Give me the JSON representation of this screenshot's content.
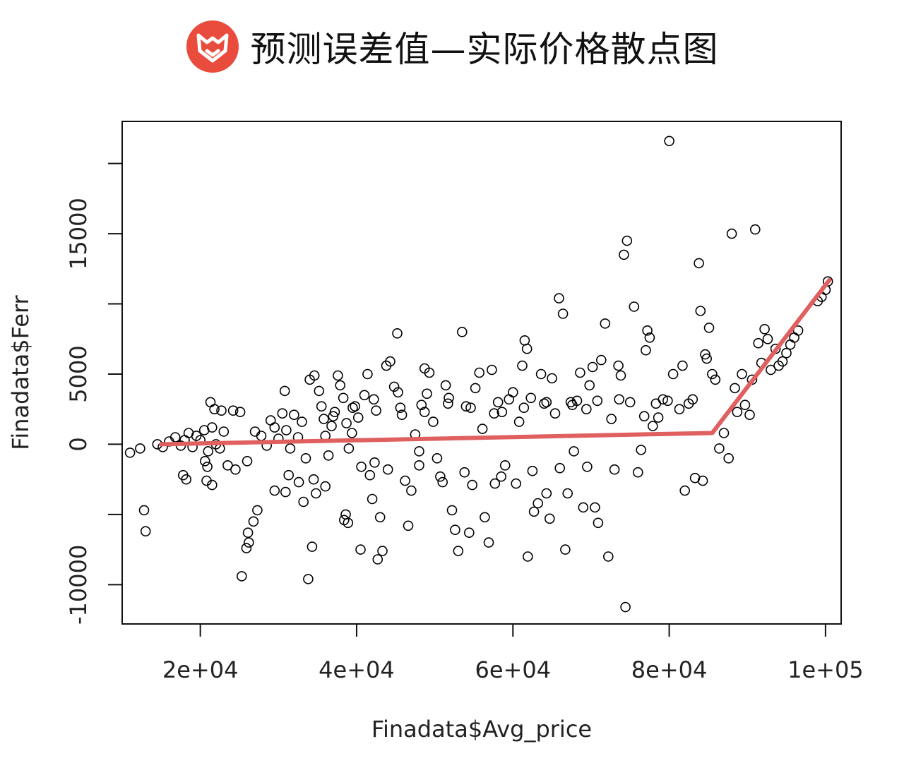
{
  "title": "预测误差值—实际价格散点图",
  "logo": {
    "name": "fox-logo-icon",
    "color": "#E94B3C"
  },
  "chart_data": {
    "type": "scatter",
    "xlabel": "Finadata$Avg_price",
    "ylabel": "Finadata$Ferr",
    "xlim": [
      10000,
      102000
    ],
    "ylim": [
      -12800,
      23000
    ],
    "x_ticks": [
      {
        "value": 20000,
        "label": "2e+04"
      },
      {
        "value": 40000,
        "label": "4e+04"
      },
      {
        "value": 60000,
        "label": "6e+04"
      },
      {
        "value": 80000,
        "label": "8e+04"
      },
      {
        "value": 100000,
        "label": "1e+05"
      }
    ],
    "y_ticks": [
      {
        "value": -10000,
        "label": "-10000"
      },
      {
        "value": -5000,
        "label": ""
      },
      {
        "value": 0,
        "label": "0"
      },
      {
        "value": 5000,
        "label": "5000"
      },
      {
        "value": 10000,
        "label": ""
      },
      {
        "value": 15000,
        "label": "15000"
      },
      {
        "value": 20000,
        "label": ""
      }
    ],
    "marker_color": "#000000",
    "fit_line": {
      "color": "#E06060",
      "x": [
        15000,
        85500,
        100500
      ],
      "y": [
        0,
        800,
        11700
      ]
    },
    "points": [
      [
        11000,
        -600
      ],
      [
        12300,
        -300
      ],
      [
        12800,
        -4700
      ],
      [
        13000,
        -6200
      ],
      [
        14500,
        0
      ],
      [
        15200,
        -200
      ],
      [
        16000,
        200
      ],
      [
        16800,
        500
      ],
      [
        17500,
        -100
      ],
      [
        18000,
        300
      ],
      [
        18500,
        800
      ],
      [
        19000,
        -200
      ],
      [
        19500,
        600
      ],
      [
        20000,
        300
      ],
      [
        20500,
        1000
      ],
      [
        21000,
        -500
      ],
      [
        21500,
        1200
      ],
      [
        22000,
        0
      ],
      [
        22500,
        -300
      ],
      [
        23000,
        900
      ],
      [
        17800,
        -2200
      ],
      [
        18200,
        -2500
      ],
      [
        20800,
        -2600
      ],
      [
        21500,
        -2900
      ],
      [
        21300,
        3000
      ],
      [
        21800,
        2500
      ],
      [
        22700,
        2400
      ],
      [
        24200,
        2400
      ],
      [
        25100,
        2300
      ],
      [
        20600,
        -1200
      ],
      [
        20900,
        -1600
      ],
      [
        23500,
        -1500
      ],
      [
        24500,
        -1800
      ],
      [
        26000,
        -1200
      ],
      [
        25300,
        -9400
      ],
      [
        26100,
        -6300
      ],
      [
        26200,
        -7000
      ],
      [
        26800,
        -5500
      ],
      [
        27300,
        -4700
      ],
      [
        25900,
        -7400
      ],
      [
        27000,
        900
      ],
      [
        27800,
        600
      ],
      [
        28500,
        -100
      ],
      [
        29000,
        1700
      ],
      [
        29500,
        1200
      ],
      [
        30000,
        400
      ],
      [
        30500,
        2200
      ],
      [
        30800,
        3800
      ],
      [
        31000,
        1000
      ],
      [
        31500,
        -300
      ],
      [
        32000,
        2100
      ],
      [
        32500,
        500
      ],
      [
        33000,
        1600
      ],
      [
        33500,
        -1000
      ],
      [
        33800,
        -9600
      ],
      [
        34300,
        -7300
      ],
      [
        34800,
        -3500
      ],
      [
        33200,
        -4100
      ],
      [
        32600,
        -2700
      ],
      [
        31300,
        -2200
      ],
      [
        30900,
        -3400
      ],
      [
        34000,
        4600
      ],
      [
        34600,
        4900
      ],
      [
        35200,
        3800
      ],
      [
        35500,
        2700
      ],
      [
        35800,
        1800
      ],
      [
        36000,
        600
      ],
      [
        36400,
        -800
      ],
      [
        36800,
        1300
      ],
      [
        37200,
        2300
      ],
      [
        37600,
        4900
      ],
      [
        37900,
        4200
      ],
      [
        38300,
        3300
      ],
      [
        38700,
        1500
      ],
      [
        39000,
        -300
      ],
      [
        39400,
        800
      ],
      [
        39800,
        2700
      ],
      [
        40200,
        1900
      ],
      [
        40600,
        -1600
      ],
      [
        41000,
        3500
      ],
      [
        41400,
        5000
      ],
      [
        41700,
        -2200
      ],
      [
        42000,
        -3900
      ],
      [
        42300,
        -1300
      ],
      [
        43000,
        -5200
      ],
      [
        43300,
        -7600
      ],
      [
        42700,
        -8200
      ],
      [
        40500,
        -7500
      ],
      [
        38600,
        -5000
      ],
      [
        38400,
        -5400
      ],
      [
        38900,
        -5600
      ],
      [
        42200,
        3200
      ],
      [
        43800,
        5600
      ],
      [
        44300,
        5900
      ],
      [
        44800,
        4100
      ],
      [
        45300,
        3700
      ],
      [
        45800,
        2100
      ],
      [
        46200,
        -2600
      ],
      [
        46600,
        -5800
      ],
      [
        47000,
        -3300
      ],
      [
        45200,
        7900
      ],
      [
        47500,
        700
      ],
      [
        48000,
        -500
      ],
      [
        48300,
        2800
      ],
      [
        48700,
        5400
      ],
      [
        49000,
        3600
      ],
      [
        49300,
        5100
      ],
      [
        49800,
        1600
      ],
      [
        50300,
        -1000
      ],
      [
        50700,
        -2300
      ],
      [
        51000,
        -2700
      ],
      [
        51400,
        4200
      ],
      [
        51800,
        3300
      ],
      [
        52200,
        -4700
      ],
      [
        52600,
        -6100
      ],
      [
        53000,
        -7600
      ],
      [
        53500,
        8000
      ],
      [
        54000,
        2700
      ],
      [
        54400,
        -6300
      ],
      [
        54800,
        -2900
      ],
      [
        55200,
        4000
      ],
      [
        55700,
        5100
      ],
      [
        56100,
        1100
      ],
      [
        56400,
        -5200
      ],
      [
        56900,
        -7000
      ],
      [
        57300,
        5300
      ],
      [
        57700,
        -2800
      ],
      [
        58100,
        3000
      ],
      [
        58600,
        2300
      ],
      [
        59000,
        -1500
      ],
      [
        59500,
        3200
      ],
      [
        60000,
        3700
      ],
      [
        60400,
        -2800
      ],
      [
        60800,
        1600
      ],
      [
        61200,
        5600
      ],
      [
        61500,
        7400
      ],
      [
        61800,
        6800
      ],
      [
        61900,
        -8000
      ],
      [
        62300,
        3300
      ],
      [
        62700,
        -4800
      ],
      [
        63200,
        -4200
      ],
      [
        63600,
        5000
      ],
      [
        64000,
        2900
      ],
      [
        64300,
        -3500
      ],
      [
        64700,
        -5300
      ],
      [
        65000,
        4700
      ],
      [
        65400,
        2200
      ],
      [
        65900,
        10400
      ],
      [
        66400,
        9300
      ],
      [
        66700,
        -7500
      ],
      [
        67000,
        -3500
      ],
      [
        67400,
        3000
      ],
      [
        67800,
        -500
      ],
      [
        68200,
        3100
      ],
      [
        68600,
        5100
      ],
      [
        69000,
        -4500
      ],
      [
        69400,
        2500
      ],
      [
        69800,
        4200
      ],
      [
        70200,
        5500
      ],
      [
        70500,
        -4500
      ],
      [
        70900,
        -5600
      ],
      [
        71300,
        6000
      ],
      [
        71800,
        8600
      ],
      [
        72200,
        -8000
      ],
      [
        72600,
        1800
      ],
      [
        73000,
        -1800
      ],
      [
        73500,
        5600
      ],
      [
        73800,
        4900
      ],
      [
        74200,
        13500
      ],
      [
        74400,
        -11600
      ],
      [
        74600,
        14500
      ],
      [
        75000,
        3000
      ],
      [
        75500,
        9800
      ],
      [
        76000,
        -2000
      ],
      [
        76400,
        -400
      ],
      [
        76800,
        2000
      ],
      [
        77000,
        6700
      ],
      [
        77200,
        8100
      ],
      [
        77500,
        7600
      ],
      [
        77900,
        1300
      ],
      [
        78300,
        2900
      ],
      [
        78600,
        1900
      ],
      [
        79200,
        3200
      ],
      [
        79800,
        3100
      ],
      [
        80000,
        21600
      ],
      [
        80500,
        5000
      ],
      [
        81300,
        2500
      ],
      [
        81700,
        5600
      ],
      [
        82000,
        -3300
      ],
      [
        82500,
        2900
      ],
      [
        83000,
        3200
      ],
      [
        83300,
        -2400
      ],
      [
        83800,
        12900
      ],
      [
        84000,
        9500
      ],
      [
        84300,
        -2600
      ],
      [
        84600,
        6400
      ],
      [
        84800,
        6100
      ],
      [
        85100,
        8300
      ],
      [
        85500,
        5000
      ],
      [
        85900,
        4600
      ],
      [
        86400,
        -300
      ],
      [
        87000,
        800
      ],
      [
        87600,
        -1000
      ],
      [
        88000,
        15000
      ],
      [
        88400,
        4000
      ],
      [
        88700,
        2300
      ],
      [
        89300,
        5000
      ],
      [
        89700,
        2800
      ],
      [
        90300,
        2100
      ],
      [
        90600,
        4600
      ],
      [
        91000,
        15300
      ],
      [
        91400,
        7200
      ],
      [
        91800,
        5800
      ],
      [
        92200,
        8200
      ],
      [
        92600,
        7500
      ],
      [
        93000,
        5300
      ],
      [
        93600,
        6800
      ],
      [
        94000,
        5600
      ],
      [
        94500,
        5900
      ],
      [
        95000,
        6500
      ],
      [
        95500,
        7100
      ],
      [
        96000,
        7600
      ],
      [
        96500,
        8100
      ],
      [
        99000,
        10200
      ],
      [
        99500,
        10500
      ],
      [
        100000,
        11000
      ],
      [
        100300,
        11600
      ],
      [
        36000,
        -3000
      ],
      [
        34500,
        -2500
      ],
      [
        29500,
        -3300
      ],
      [
        44000,
        -1800
      ],
      [
        48000,
        -1500
      ],
      [
        53800,
        -2000
      ],
      [
        58500,
        -2300
      ],
      [
        62500,
        -1900
      ],
      [
        66000,
        -1700
      ],
      [
        69500,
        -1600
      ],
      [
        37000,
        2000
      ],
      [
        39500,
        2600
      ],
      [
        42500,
        2400
      ],
      [
        45600,
        2600
      ],
      [
        48700,
        2300
      ],
      [
        51700,
        2900
      ],
      [
        54600,
        2600
      ],
      [
        57600,
        2200
      ],
      [
        61400,
        2600
      ],
      [
        64300,
        3000
      ],
      [
        67600,
        2800
      ],
      [
        70800,
        3100
      ],
      [
        73600,
        3200
      ]
    ]
  }
}
